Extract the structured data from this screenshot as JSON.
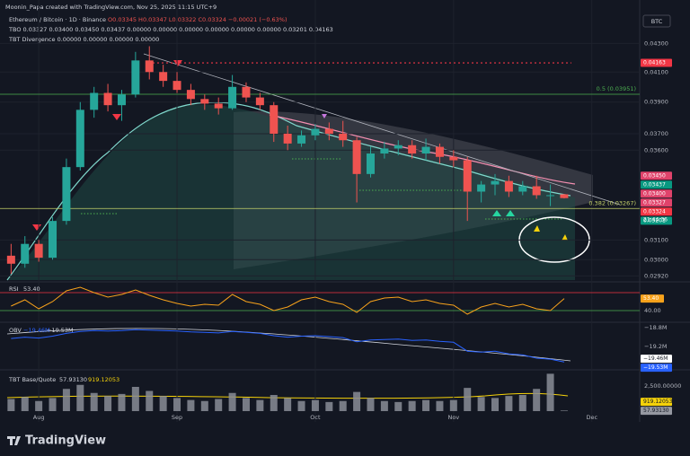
{
  "header": {
    "credit": "Moonin_Papa created with TradingView.com, Nov 25, 2025 11:15 UTC+9",
    "symbol": "Ethereum / Bitcoin · 1D · Binance",
    "ohlc": "O0.03345 H0.03347 L0.03322 C0.03324 −0.00021 (−0.63%)",
    "tbo": "TBO 0.03327 0.03400 0.03450 0.03437 0.00000 0.00000 0.00000 0.00000 0.00000 0.00000 0.03201 0.04163",
    "tbt_divergence": "TBT Divergence 0.00000 0.00000 0.00000 0.00000",
    "currency_button": "BTC",
    "countdown": "21:44:36",
    "logo": "TradingView"
  },
  "chart_data": [
    {
      "type": "candlestick",
      "log_scale": true,
      "grid": true,
      "up_color": "#26a69a",
      "down_color": "#ef5350",
      "categories": [
        null,
        null,
        "Aug",
        null,
        null,
        null,
        null,
        null,
        null,
        null,
        null,
        null,
        "Sep",
        null,
        null,
        null,
        null,
        null,
        null,
        null,
        null,
        null,
        "Oct",
        null,
        null,
        null,
        null,
        null,
        null,
        null,
        null,
        null,
        "Nov",
        null,
        null,
        null,
        null,
        null,
        null,
        null,
        null,
        null,
        "Dec"
      ],
      "open": [
        0.0302,
        0.0298,
        0.0308,
        0.0301,
        0.032,
        0.035,
        0.0385,
        0.0396,
        0.0388,
        0.0395,
        0.0418,
        0.041,
        0.0404,
        0.0398,
        0.0392,
        0.0389,
        0.0386,
        0.04,
        0.0393,
        0.0388,
        0.037,
        0.0364,
        0.0369,
        0.0373,
        0.037,
        0.0366,
        0.0346,
        0.0358,
        0.0361,
        0.0363,
        0.0358,
        0.0362,
        0.0356,
        0.0354,
        0.0336,
        0.034,
        0.0342,
        0.0336,
        0.0339,
        0.0334,
        0.03345,
        null,
        null
      ],
      "high": [
        0.0308,
        0.0312,
        0.031,
        0.0322,
        0.0355,
        0.039,
        0.04,
        0.0402,
        0.0398,
        0.0424,
        0.0428,
        0.0415,
        0.041,
        0.0402,
        0.0395,
        0.0393,
        0.0408,
        0.0403,
        0.0396,
        0.039,
        0.0375,
        0.0372,
        0.0376,
        0.0377,
        0.0378,
        0.0368,
        0.0362,
        0.0365,
        0.0366,
        0.0366,
        0.0367,
        0.0364,
        0.036,
        0.0356,
        0.0342,
        0.0346,
        0.0345,
        0.0342,
        0.0345,
        0.034,
        0.03347,
        null,
        null
      ],
      "low": [
        0.0293,
        0.0296,
        0.0299,
        0.03,
        0.0318,
        0.0348,
        0.038,
        0.0384,
        0.0378,
        0.0393,
        0.0405,
        0.04,
        0.0396,
        0.0388,
        0.0385,
        0.0382,
        0.0385,
        0.039,
        0.0385,
        0.0365,
        0.036,
        0.0362,
        0.0366,
        0.0366,
        0.0362,
        0.033,
        0.0344,
        0.0355,
        0.0357,
        0.0355,
        0.0354,
        0.0352,
        0.035,
        0.032,
        0.033,
        0.0334,
        0.0333,
        0.0334,
        0.0332,
        0.0328,
        0.03322,
        null,
        null
      ],
      "close": [
        0.0298,
        0.0308,
        0.0301,
        0.032,
        0.035,
        0.0385,
        0.0396,
        0.0388,
        0.0395,
        0.0418,
        0.041,
        0.0404,
        0.0398,
        0.0392,
        0.0389,
        0.0386,
        0.04,
        0.0393,
        0.0388,
        0.037,
        0.0364,
        0.0369,
        0.0373,
        0.037,
        0.0366,
        0.0346,
        0.0358,
        0.0361,
        0.0363,
        0.0358,
        0.0362,
        0.0356,
        0.0354,
        0.0336,
        0.034,
        0.0342,
        0.0336,
        0.0339,
        0.0334,
        0.0334,
        0.03324,
        null,
        null
      ],
      "ylim": [
        0.029,
        0.044
      ],
      "yticks": [
        {
          "value": 0.043,
          "label": "0.04300"
        },
        {
          "value": 0.041,
          "label": "0.04100"
        },
        {
          "value": 0.039,
          "label": "0.03900"
        },
        {
          "value": 0.037,
          "label": "0.03700"
        },
        {
          "value": 0.036,
          "label": "0.03600"
        },
        {
          "value": 0.031,
          "label": "0.03100"
        },
        {
          "value": 0.03,
          "label": "0.03000"
        },
        {
          "value": 0.0292,
          "label": "0.02920"
        }
      ],
      "levels": [
        {
          "value": 0.03951,
          "label": "0.5 (0.03951)",
          "color": "#4caf50"
        },
        {
          "value": 0.03267,
          "label": "0.382 (0.03267)",
          "color": "#c6d36a"
        }
      ],
      "price_labels": [
        {
          "value": 0.04163,
          "label": "0.04163",
          "color": "#f23645",
          "dotted": true
        },
        {
          "value": 0.0345,
          "label": "0.03450",
          "color": "#e0436b"
        },
        {
          "value": 0.03437,
          "label": "0.03437",
          "color": "#089981"
        },
        {
          "value": 0.034,
          "label": "0.03400",
          "color": "#e0436b"
        },
        {
          "value": 0.03327,
          "label": "0.03327",
          "color": "#e0436b"
        },
        {
          "value": 0.03324,
          "label": "0.03324",
          "color": "#f23645"
        },
        {
          "value": 0.03201,
          "label": "0.03201",
          "color": "#089981"
        }
      ]
    },
    {
      "type": "line",
      "name": "RSI",
      "color": "#f7a21b",
      "values": [
        45,
        52,
        42,
        50,
        62,
        66,
        60,
        55,
        58,
        63,
        57,
        52,
        48,
        45,
        47,
        46,
        58,
        50,
        47,
        40,
        44,
        52,
        55,
        50,
        47,
        38,
        50,
        54,
        55,
        50,
        52,
        48,
        46,
        36,
        44,
        48,
        44,
        47,
        42,
        40,
        53.4
      ],
      "last_label": "53.40",
      "ylim": [
        30,
        70
      ],
      "yticks": [
        {
          "value": 40,
          "label": "40.00"
        }
      ],
      "bands": [
        {
          "value": 60,
          "color": "#f23645"
        },
        {
          "value": 40,
          "color": "#4caf50"
        }
      ]
    },
    {
      "type": "line",
      "name": "OBV",
      "color": "#2962ff",
      "values": [
        -19.03,
        -19.0,
        -19.02,
        -18.98,
        -18.92,
        -18.88,
        -18.86,
        -18.87,
        -18.86,
        -18.84,
        -18.85,
        -18.86,
        -18.87,
        -18.89,
        -18.9,
        -18.91,
        -18.88,
        -18.9,
        -18.92,
        -18.97,
        -19.0,
        -18.98,
        -18.97,
        -18.99,
        -19.01,
        -19.1,
        -19.06,
        -19.05,
        -19.04,
        -19.07,
        -19.06,
        -19.09,
        -19.11,
        -19.3,
        -19.32,
        -19.3,
        -19.36,
        -19.38,
        -19.45,
        -19.47,
        -19.53
      ],
      "ylim": [
        -19.66,
        -18.74
      ],
      "yticks": [
        {
          "value": -18.8,
          "label": "−18.8M"
        },
        {
          "value": -19.2,
          "label": "−19.2M"
        }
      ],
      "tags": [
        {
          "value": -19.46,
          "label": "−19.46M",
          "color": "#ffffff",
          "text_color": "#131722"
        },
        {
          "value": -19.53,
          "label": "−19.53M",
          "color": "#2962ff",
          "text_color": "#ffffff"
        }
      ]
    },
    {
      "type": "bar",
      "name": "TBT Base/Quote",
      "color": "#8a8d96",
      "values": [
        1200,
        1400,
        1000,
        1300,
        2200,
        2600,
        1800,
        1500,
        1700,
        2400,
        2000,
        1500,
        1300,
        1100,
        1000,
        1200,
        1800,
        1300,
        1100,
        1600,
        1300,
        1000,
        1100,
        900,
        1000,
        1900,
        1300,
        1000,
        900,
        1000,
        1100,
        1000,
        1100,
        2300,
        1400,
        1300,
        1500,
        1600,
        2200,
        3700,
        57.9313
      ],
      "ylim": [
        0,
        4000
      ],
      "yticks": [
        {
          "value": 2500,
          "label": "2,500.00000"
        }
      ],
      "tags": [
        {
          "value": 919.12053,
          "label": "919.12053",
          "color": "#f5d20a",
          "text_color": "#131722"
        },
        {
          "value": 57.9313,
          "label": "57.93130",
          "color": "#9598a1",
          "text_color": "#131722"
        }
      ]
    }
  ]
}
